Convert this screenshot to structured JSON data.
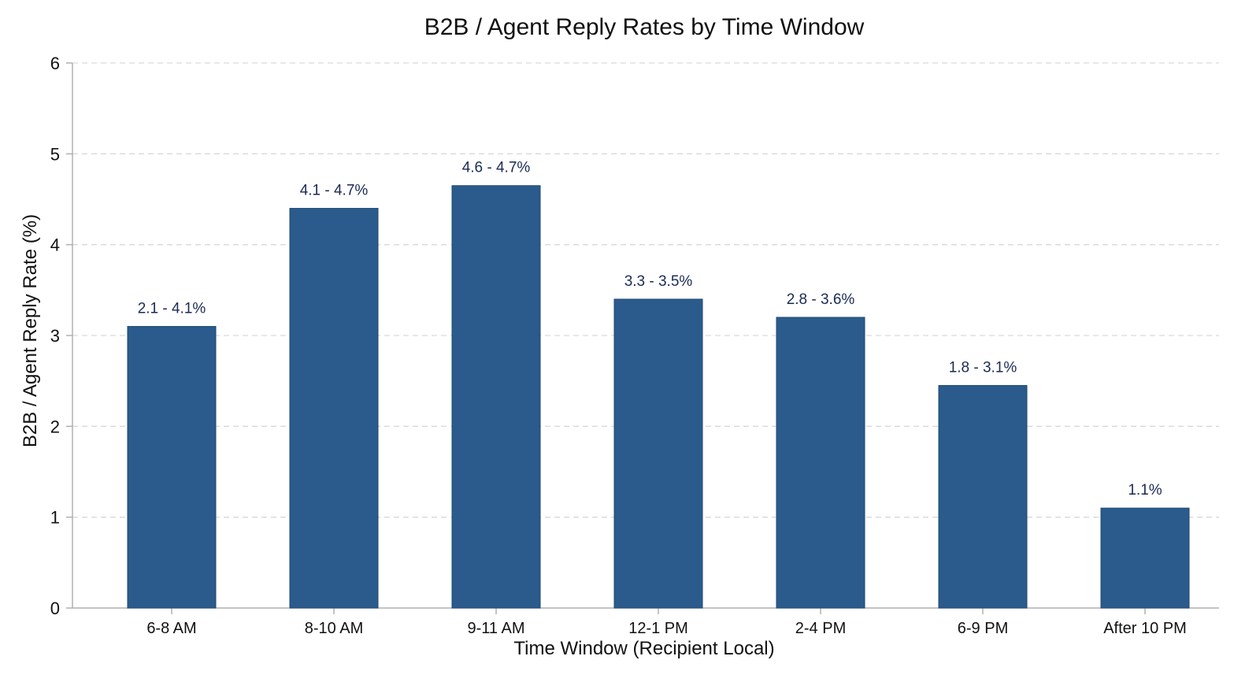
{
  "chart_data": {
    "type": "bar",
    "title": "B2B / Agent Reply Rates by Time Window",
    "xlabel": "Time Window (Recipient Local)",
    "ylabel": "B2B / Agent Reply Rate (%)",
    "categories": [
      "6-8 AM",
      "8-10 AM",
      "9-11 AM",
      "12-1 PM",
      "2-4 PM",
      "6-9 PM",
      "After 10 PM"
    ],
    "values": [
      3.1,
      4.4,
      4.65,
      3.4,
      3.2,
      2.45,
      1.1
    ],
    "data_labels": [
      "2.1 - 4.1%",
      "4.1 - 4.7%",
      "4.6 - 4.7%",
      "3.3 - 3.5%",
      "2.8 - 3.6%",
      "1.8 - 3.1%",
      "1.1%"
    ],
    "ylim": [
      0,
      6
    ],
    "yticks": [
      0,
      1,
      2,
      3,
      4,
      5,
      6
    ],
    "grid": true,
    "grid_axis": "y",
    "legend": "none",
    "colors": {
      "bar": "#2b5b8c",
      "bar_edge": "#1f4a75",
      "data_label": "#1a2a55",
      "grid": "#d9d9d9",
      "axis": "#b0b0b0",
      "text": "#111111"
    }
  }
}
